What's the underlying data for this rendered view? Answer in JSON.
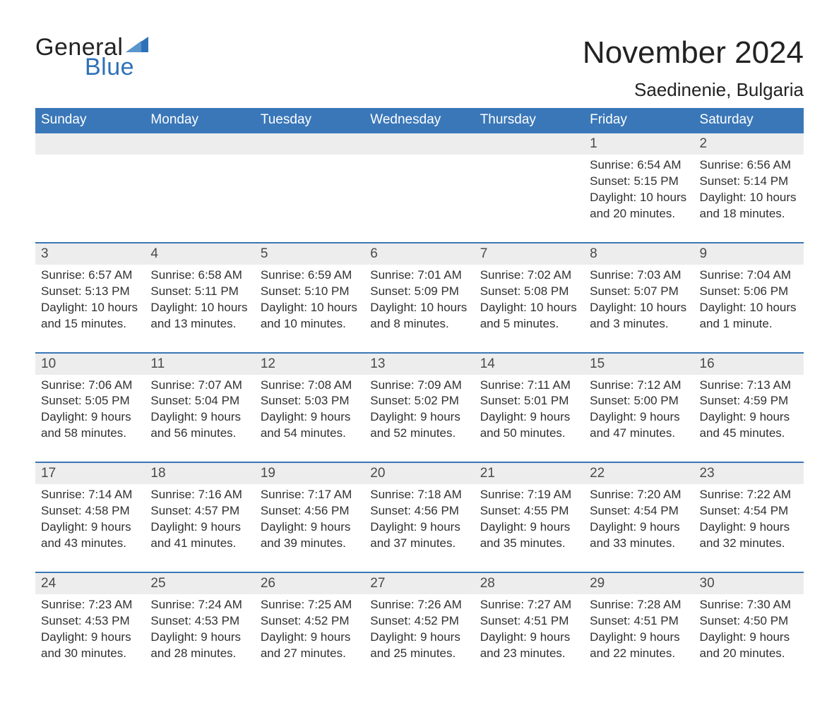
{
  "logo": {
    "word1": "General",
    "word2": "Blue",
    "text_color": "#222222",
    "accent_color": "#2f71b8"
  },
  "title": "November 2024",
  "location": "Saedinenie, Bulgaria",
  "colors": {
    "header_bg": "#3a77b8",
    "header_text": "#ffffff",
    "daynum_bg": "#ededed",
    "daynum_border": "#3a77b8",
    "body_text": "#303030",
    "background": "#ffffff"
  },
  "typography": {
    "title_fontsize": 44,
    "location_fontsize": 26,
    "dayheader_fontsize": 19,
    "daynum_fontsize": 19,
    "detail_fontsize": 17,
    "font_family": "Arial"
  },
  "day_headers": [
    "Sunday",
    "Monday",
    "Tuesday",
    "Wednesday",
    "Thursday",
    "Friday",
    "Saturday"
  ],
  "weeks": [
    [
      null,
      null,
      null,
      null,
      null,
      {
        "n": "1",
        "sunrise": "6:54 AM",
        "sunset": "5:15 PM",
        "daylight": "10 hours and 20 minutes."
      },
      {
        "n": "2",
        "sunrise": "6:56 AM",
        "sunset": "5:14 PM",
        "daylight": "10 hours and 18 minutes."
      }
    ],
    [
      {
        "n": "3",
        "sunrise": "6:57 AM",
        "sunset": "5:13 PM",
        "daylight": "10 hours and 15 minutes."
      },
      {
        "n": "4",
        "sunrise": "6:58 AM",
        "sunset": "5:11 PM",
        "daylight": "10 hours and 13 minutes."
      },
      {
        "n": "5",
        "sunrise": "6:59 AM",
        "sunset": "5:10 PM",
        "daylight": "10 hours and 10 minutes."
      },
      {
        "n": "6",
        "sunrise": "7:01 AM",
        "sunset": "5:09 PM",
        "daylight": "10 hours and 8 minutes."
      },
      {
        "n": "7",
        "sunrise": "7:02 AM",
        "sunset": "5:08 PM",
        "daylight": "10 hours and 5 minutes."
      },
      {
        "n": "8",
        "sunrise": "7:03 AM",
        "sunset": "5:07 PM",
        "daylight": "10 hours and 3 minutes."
      },
      {
        "n": "9",
        "sunrise": "7:04 AM",
        "sunset": "5:06 PM",
        "daylight": "10 hours and 1 minute."
      }
    ],
    [
      {
        "n": "10",
        "sunrise": "7:06 AM",
        "sunset": "5:05 PM",
        "daylight": "9 hours and 58 minutes."
      },
      {
        "n": "11",
        "sunrise": "7:07 AM",
        "sunset": "5:04 PM",
        "daylight": "9 hours and 56 minutes."
      },
      {
        "n": "12",
        "sunrise": "7:08 AM",
        "sunset": "5:03 PM",
        "daylight": "9 hours and 54 minutes."
      },
      {
        "n": "13",
        "sunrise": "7:09 AM",
        "sunset": "5:02 PM",
        "daylight": "9 hours and 52 minutes."
      },
      {
        "n": "14",
        "sunrise": "7:11 AM",
        "sunset": "5:01 PM",
        "daylight": "9 hours and 50 minutes."
      },
      {
        "n": "15",
        "sunrise": "7:12 AM",
        "sunset": "5:00 PM",
        "daylight": "9 hours and 47 minutes."
      },
      {
        "n": "16",
        "sunrise": "7:13 AM",
        "sunset": "4:59 PM",
        "daylight": "9 hours and 45 minutes."
      }
    ],
    [
      {
        "n": "17",
        "sunrise": "7:14 AM",
        "sunset": "4:58 PM",
        "daylight": "9 hours and 43 minutes."
      },
      {
        "n": "18",
        "sunrise": "7:16 AM",
        "sunset": "4:57 PM",
        "daylight": "9 hours and 41 minutes."
      },
      {
        "n": "19",
        "sunrise": "7:17 AM",
        "sunset": "4:56 PM",
        "daylight": "9 hours and 39 minutes."
      },
      {
        "n": "20",
        "sunrise": "7:18 AM",
        "sunset": "4:56 PM",
        "daylight": "9 hours and 37 minutes."
      },
      {
        "n": "21",
        "sunrise": "7:19 AM",
        "sunset": "4:55 PM",
        "daylight": "9 hours and 35 minutes."
      },
      {
        "n": "22",
        "sunrise": "7:20 AM",
        "sunset": "4:54 PM",
        "daylight": "9 hours and 33 minutes."
      },
      {
        "n": "23",
        "sunrise": "7:22 AM",
        "sunset": "4:54 PM",
        "daylight": "9 hours and 32 minutes."
      }
    ],
    [
      {
        "n": "24",
        "sunrise": "7:23 AM",
        "sunset": "4:53 PM",
        "daylight": "9 hours and 30 minutes."
      },
      {
        "n": "25",
        "sunrise": "7:24 AM",
        "sunset": "4:53 PM",
        "daylight": "9 hours and 28 minutes."
      },
      {
        "n": "26",
        "sunrise": "7:25 AM",
        "sunset": "4:52 PM",
        "daylight": "9 hours and 27 minutes."
      },
      {
        "n": "27",
        "sunrise": "7:26 AM",
        "sunset": "4:52 PM",
        "daylight": "9 hours and 25 minutes."
      },
      {
        "n": "28",
        "sunrise": "7:27 AM",
        "sunset": "4:51 PM",
        "daylight": "9 hours and 23 minutes."
      },
      {
        "n": "29",
        "sunrise": "7:28 AM",
        "sunset": "4:51 PM",
        "daylight": "9 hours and 22 minutes."
      },
      {
        "n": "30",
        "sunrise": "7:30 AM",
        "sunset": "4:50 PM",
        "daylight": "9 hours and 20 minutes."
      }
    ]
  ],
  "labels": {
    "sunrise": "Sunrise: ",
    "sunset": "Sunset: ",
    "daylight": "Daylight: "
  }
}
